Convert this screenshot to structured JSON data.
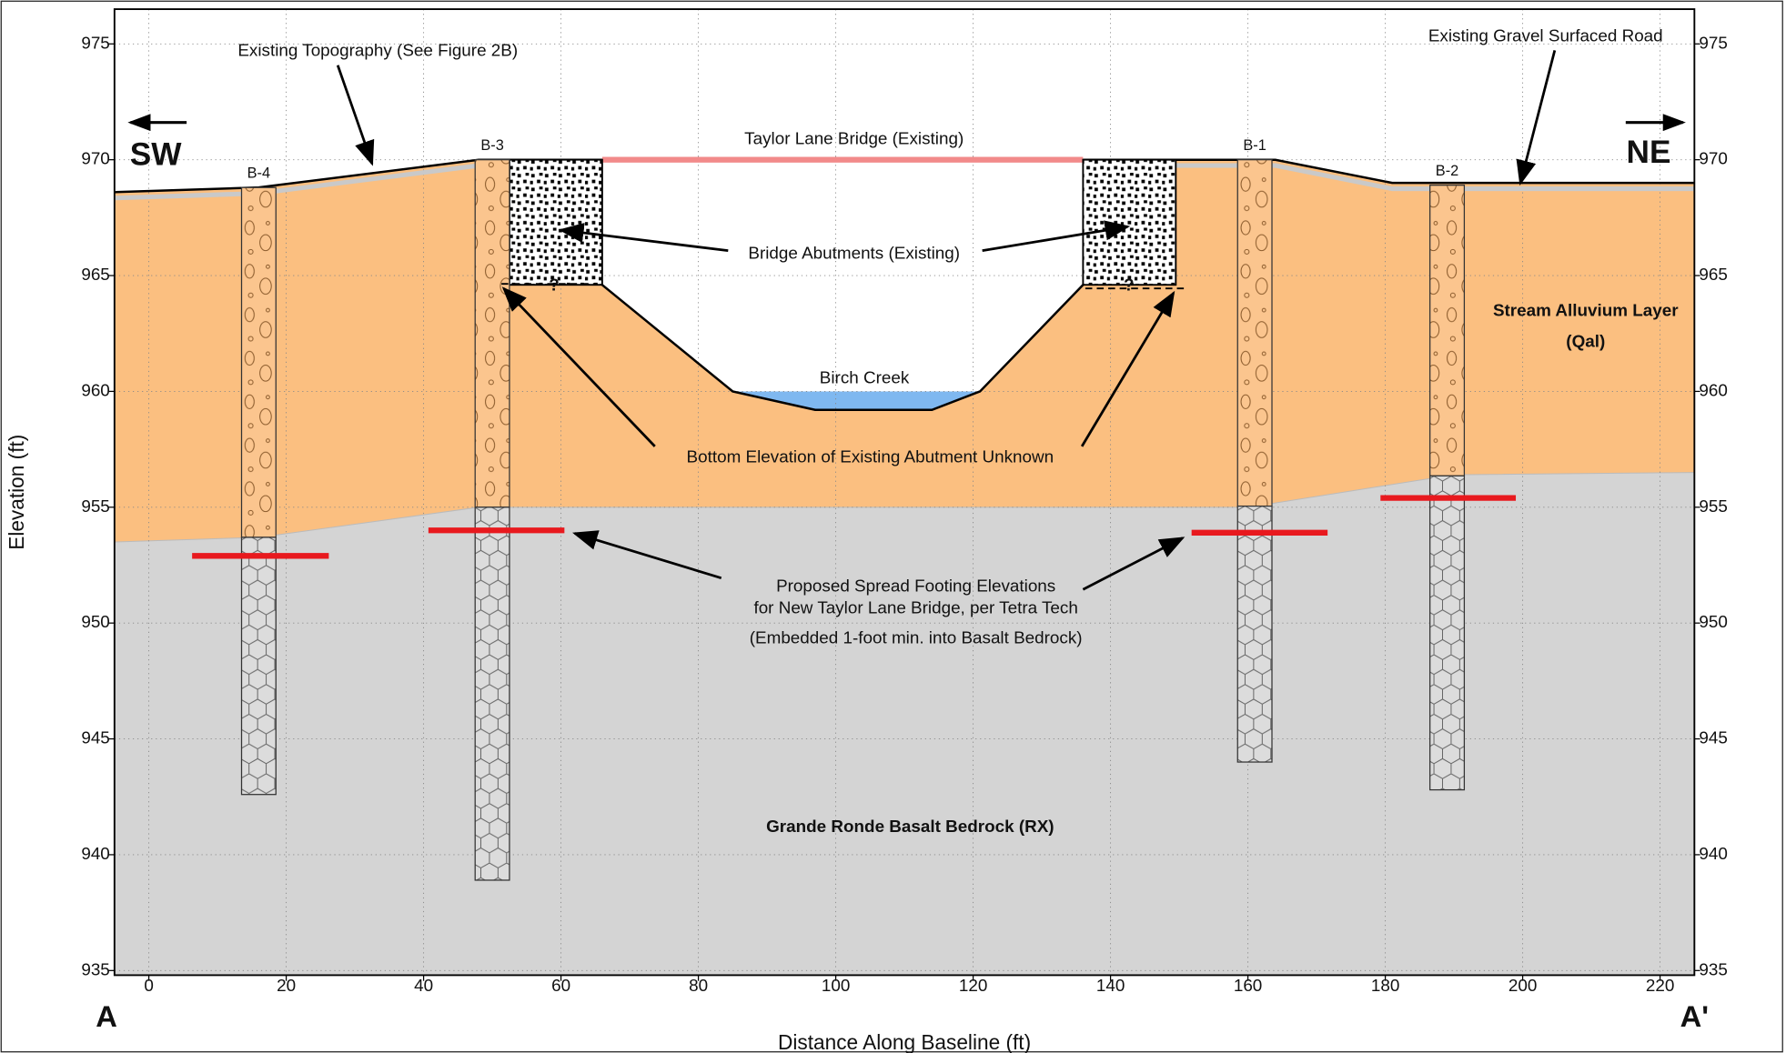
{
  "chart_data": {
    "type": "cross-section",
    "xlabel": "Distance Along Baseline (ft)",
    "ylabel": "Elevation (ft)",
    "xlim": [
      -5,
      225
    ],
    "ylim": [
      934.8,
      976.5
    ],
    "xticks": [
      0,
      20,
      40,
      60,
      80,
      100,
      120,
      140,
      160,
      180,
      200,
      220
    ],
    "yticks": [
      935,
      940,
      945,
      950,
      955,
      960,
      965,
      970,
      975
    ],
    "grid": true,
    "direction_labels": {
      "left": "SW",
      "right": "NE"
    },
    "section_labels": {
      "start": "A",
      "end": "A'"
    },
    "colors": {
      "alluvium": "#fbbf80",
      "bedrock": "#d4d4d4",
      "water": "#7fb8f0",
      "footing": "#e8191e",
      "bridge": "#f28a8a"
    },
    "ground_surface": {
      "x": [
        -5,
        16,
        48,
        66,
        136,
        164,
        181,
        225
      ],
      "y": [
        968.6,
        968.8,
        970,
        970,
        970,
        970,
        969,
        969
      ]
    },
    "channel": {
      "x": [
        66,
        85,
        97,
        114,
        121,
        136
      ],
      "y": [
        964.6,
        960,
        959.2,
        959.2,
        960,
        964.6
      ]
    },
    "water": {
      "name": "Birch Creek",
      "x": [
        85,
        121
      ],
      "level": 960
    },
    "bedrock_contact": {
      "x": [
        -5,
        16,
        48,
        160,
        190,
        225
      ],
      "y": [
        953.5,
        953.7,
        955,
        955,
        956.4,
        956.5
      ]
    },
    "bridge": {
      "name": "Taylor Lane Bridge (Existing)",
      "x": [
        66,
        136
      ],
      "elevation": 970
    },
    "abutments": [
      {
        "x": [
          52.5,
          66
        ],
        "top": 970,
        "bottom": 964.6
      },
      {
        "x": [
          136,
          149.5
        ],
        "top": 970,
        "bottom": 964.6
      }
    ],
    "borings": [
      {
        "name": "B-4",
        "x": 16,
        "top": 968.8,
        "bottom": 942.6
      },
      {
        "name": "B-3",
        "x": 50,
        "top": 970,
        "bottom": 938.9
      },
      {
        "name": "B-1",
        "x": 161,
        "top": 970,
        "bottom": 944
      },
      {
        "name": "B-2",
        "x": 189,
        "top": 968.9,
        "bottom": 942.8
      }
    ],
    "footings": [
      {
        "x": [
          6.3,
          26.2
        ],
        "elevation": 952.9
      },
      {
        "x": [
          40.7,
          60.5
        ],
        "elevation": 954
      },
      {
        "x": [
          151.8,
          171.6
        ],
        "elevation": 953.9
      },
      {
        "x": [
          179.3,
          199
        ],
        "elevation": 955.4
      }
    ],
    "annotations": {
      "topography": "Existing Topography (See Figure 2B)",
      "road": "Existing Gravel Surfaced Road",
      "abutments": "Bridge Abutments (Existing)",
      "abutment_bottom": "Bottom Elevation of Existing Abutment Unknown",
      "unknown": "?",
      "footings": [
        "Proposed Spread Footing Elevations",
        "for New Taylor Lane Bridge, per Tetra Tech",
        "(Embedded 1-foot min. into Basalt Bedrock)"
      ],
      "alluvium": [
        "Stream Alluvium Layer",
        "(Qal)"
      ],
      "bedrock": "Grande Ronde Basalt Bedrock (RX)"
    }
  }
}
